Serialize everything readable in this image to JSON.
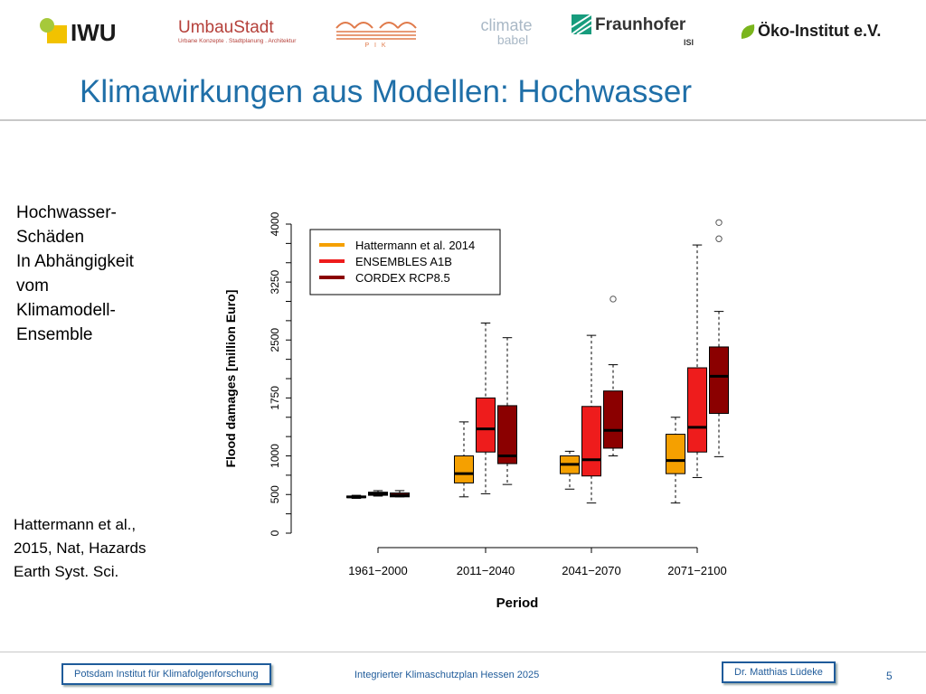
{
  "logos": {
    "iwu": "IWU",
    "umbau": "UmbauStadt",
    "umbau_sub": "Urbane Konzepte . Stadtplanung . Architektur",
    "pik": "P I K",
    "climate": "climate",
    "babel": "babel",
    "fraunhofer": "Fraunhofer",
    "isi": "ISI",
    "oeko": "Öko-Institut e.V.",
    "colors": {
      "iwu_green": "#a6c93a",
      "iwu_yellow": "#f2c200",
      "umbau_red": "#b5403a",
      "pik_orange": "#e07a4a",
      "climate_gray": "#a9b8c6",
      "fraunhofer_green": "#179c7d",
      "oeko_green": "#7ab51d"
    }
  },
  "slide": {
    "title": "Klimawirkungen aus Modellen: Hochwasser",
    "side_text": "Hochwasser-\nSchäden\nIn Abhängigkeit\nvom\nKlimamodell-\nEnsemble",
    "citation": "Hattermann et al.,\n2015, Nat, Hazards\nEarth Syst. Sci."
  },
  "footer": {
    "left": "Potsdam Institut für Klimafolgenforschung",
    "center": "Integrierter Klimaschutzplan Hessen 2025",
    "right": "Dr. Matthias Lüdeke",
    "page": "5"
  },
  "chart_data": {
    "type": "boxplot",
    "xlabel": "Period",
    "ylabel": "Flood damages [million Euro]",
    "ylim": [
      0,
      4000
    ],
    "yticks": [
      0,
      500,
      1000,
      1750,
      2500,
      3250,
      4000
    ],
    "categories": [
      "1961−2000",
      "2011−2040",
      "2041−2070",
      "2071−2100"
    ],
    "legend_position": "top-left",
    "series": [
      {
        "name": "Hattermann et al. 2014",
        "color": "#f5a000",
        "boxes": [
          {
            "min": 450,
            "q1": 460,
            "median": 470,
            "q3": 480,
            "max": 490,
            "outliers": []
          },
          {
            "min": 470,
            "q1": 650,
            "median": 770,
            "q3": 1000,
            "max": 1440,
            "outliers": []
          },
          {
            "min": 570,
            "q1": 770,
            "median": 890,
            "q3": 1000,
            "max": 1060,
            "outliers": []
          },
          {
            "min": 390,
            "q1": 770,
            "median": 940,
            "q3": 1280,
            "max": 1500,
            "outliers": []
          }
        ]
      },
      {
        "name": "ENSEMBLES A1B",
        "color": "#ee1c1c",
        "boxes": [
          {
            "min": 480,
            "q1": 490,
            "median": 510,
            "q3": 530,
            "max": 550,
            "outliers": []
          },
          {
            "min": 510,
            "q1": 1050,
            "median": 1350,
            "q3": 1750,
            "max": 2720,
            "outliers": []
          },
          {
            "min": 390,
            "q1": 740,
            "median": 950,
            "q3": 1640,
            "max": 2560,
            "outliers": []
          },
          {
            "min": 720,
            "q1": 1050,
            "median": 1370,
            "q3": 2140,
            "max": 3730,
            "outliers": []
          }
        ]
      },
      {
        "name": "CORDEX RCP8.5",
        "color": "#8b0000",
        "boxes": [
          {
            "min": 470,
            "q1": 470,
            "median": 490,
            "q3": 520,
            "max": 550,
            "outliers": []
          },
          {
            "min": 630,
            "q1": 900,
            "median": 1000,
            "q3": 1650,
            "max": 2530,
            "outliers": []
          },
          {
            "min": 1000,
            "q1": 1100,
            "median": 1330,
            "q3": 1840,
            "max": 2180,
            "outliers": [
              3030
            ]
          },
          {
            "min": 990,
            "q1": 1550,
            "median": 2030,
            "q3": 2410,
            "max": 2870,
            "outliers": [
              3810,
              4020
            ]
          }
        ]
      }
    ]
  }
}
